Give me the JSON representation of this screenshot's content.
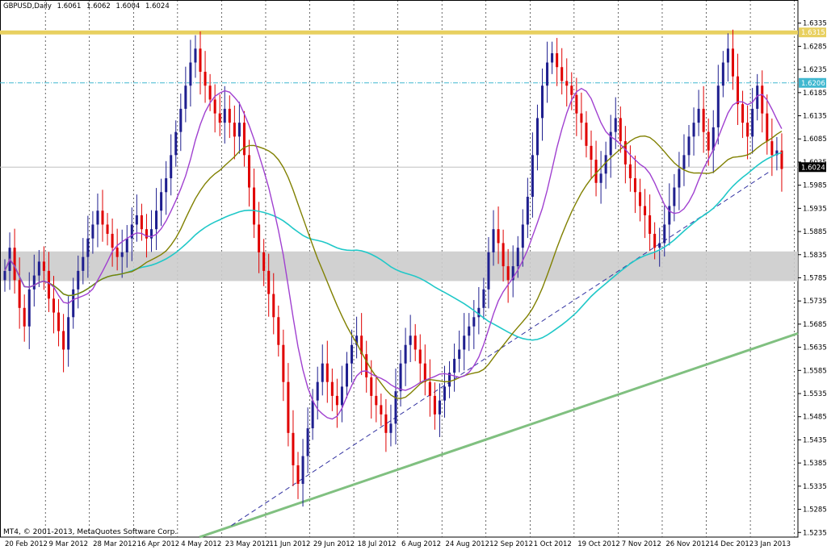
{
  "header": {
    "symbol": "GBPUSD,Daily",
    "open": "1.6061",
    "high": "1.6062",
    "low": "1.6004",
    "close": "1.6024"
  },
  "copyright": "MT4, © 2001-2013, MetaQuotes Software Corp.",
  "chart_data": {
    "type": "candlestick",
    "ylim": [
      1.5225,
      1.6385
    ],
    "y_ticks": [
      "1.6335",
      "1.6285",
      "1.6235",
      "1.6185",
      "1.6135",
      "1.6085",
      "1.6035",
      "1.5985",
      "1.5935",
      "1.5885",
      "1.5835",
      "1.5785",
      "1.5735",
      "1.5685",
      "1.5635",
      "1.5585",
      "1.5535",
      "1.5485",
      "1.5435",
      "1.5385",
      "1.5335",
      "1.5285",
      "1.5235"
    ],
    "x_labels": [
      "20 Feb 2012",
      "9 Mar 2012",
      "28 Mar 2012",
      "16 Apr 2012",
      "4 May 2012",
      "23 May 2012",
      "11 Jun 2012",
      "29 Jun 2012",
      "18 Jul 2012",
      "6 Aug 2012",
      "24 Aug 2012",
      "12 Sep 2012",
      "1 Oct 2012",
      "19 Oct 2012",
      "7 Nov 2012",
      "26 Nov 2012",
      "14 Dec 2012",
      "3 Jan 2013"
    ],
    "start_date": "2012-02-20",
    "date_step_days": 1.4,
    "closes": [
      1.58,
      1.585,
      1.578,
      1.572,
      1.568,
      1.576,
      1.579,
      1.582,
      1.58,
      1.574,
      1.571,
      1.567,
      1.563,
      1.57,
      1.576,
      1.58,
      1.583,
      1.587,
      1.59,
      1.593,
      1.59,
      1.588,
      1.585,
      1.583,
      1.584,
      1.587,
      1.59,
      1.592,
      1.589,
      1.587,
      1.589,
      1.593,
      1.597,
      1.6,
      1.605,
      1.61,
      1.615,
      1.62,
      1.625,
      1.628,
      1.623,
      1.62,
      1.617,
      1.614,
      1.612,
      1.615,
      1.612,
      1.609,
      1.612,
      1.605,
      1.598,
      1.59,
      1.584,
      1.58,
      1.575,
      1.57,
      1.564,
      1.556,
      1.545,
      1.538,
      1.534,
      1.54,
      1.546,
      1.552,
      1.556,
      1.56,
      1.556,
      1.553,
      1.551,
      1.555,
      1.56,
      1.564,
      1.566,
      1.562,
      1.557,
      1.553,
      1.551,
      1.549,
      1.545,
      1.547,
      1.554,
      1.56,
      1.564,
      1.566,
      1.563,
      1.56,
      1.556,
      1.553,
      1.549,
      1.552,
      1.555,
      1.558,
      1.561,
      1.563,
      1.566,
      1.568,
      1.57,
      1.572,
      1.576,
      1.584,
      1.589,
      1.586,
      1.581,
      1.578,
      1.581,
      1.585,
      1.59,
      1.596,
      1.605,
      1.613,
      1.62,
      1.625,
      1.627,
      1.624,
      1.621,
      1.62,
      1.618,
      1.614,
      1.612,
      1.607,
      1.604,
      1.599,
      1.601,
      1.605,
      1.61,
      1.613,
      1.608,
      1.603,
      1.6,
      1.597,
      1.594,
      1.592,
      1.588,
      1.585,
      1.586,
      1.59,
      1.594,
      1.598,
      1.602,
      1.605,
      1.609,
      1.612,
      1.615,
      1.61,
      1.606,
      1.611,
      1.62,
      1.625,
      1.628,
      1.622,
      1.616,
      1.612,
      1.609,
      1.615,
      1.62,
      1.614,
      1.608,
      1.605,
      1.606,
      1.602
    ],
    "ma_purple": [],
    "ma_olive": [],
    "ma_cyan": [],
    "overlays": {
      "yellow_resistance": 1.6315,
      "cyan_dashdot_level": 1.6206,
      "gray_price_line": 1.6024,
      "gray_zone": [
        1.5778,
        1.5842
      ],
      "current_price_label": "1.6024",
      "cyan_label": "1.6206",
      "yellow_label": "1.6315",
      "green_trendline": [
        [
          0.25,
          1.5225
        ],
        [
          1.0,
          1.5665
        ]
      ],
      "blue_dash_trendline": [
        [
          0.29,
          1.525
        ],
        [
          0.965,
          1.6015
        ]
      ]
    },
    "colors": {
      "bull": "#1f1f8f",
      "bear": "#e00000",
      "ma_purple": "#a040d0",
      "ma_olive": "#808000",
      "ma_cyan": "#20c8c8",
      "yellow": "#e8d060",
      "green": "#80c080",
      "gray_zone": "#cccccc"
    }
  }
}
